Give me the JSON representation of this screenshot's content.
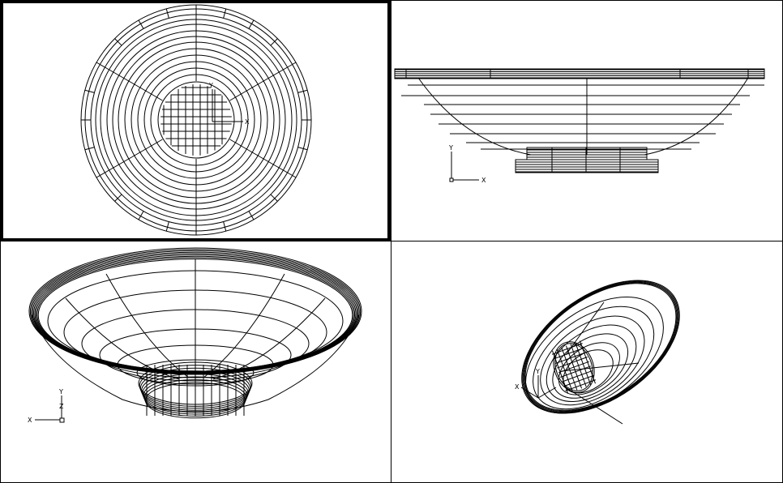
{
  "viewports": {
    "top": {
      "active": true,
      "axis": {
        "x": "X",
        "y": "Y"
      }
    },
    "front": {
      "active": false,
      "axis": {
        "x": "X",
        "y": "Y"
      }
    },
    "perspective": {
      "active": false,
      "axis": {
        "x": "X",
        "y": "Y",
        "z": "Z"
      }
    },
    "isometric": {
      "active": false,
      "axis": {
        "x": "X",
        "y": "Y"
      }
    }
  },
  "colors": {
    "wire": "#000000",
    "background": "#ffffff",
    "active_border": "#000000"
  }
}
